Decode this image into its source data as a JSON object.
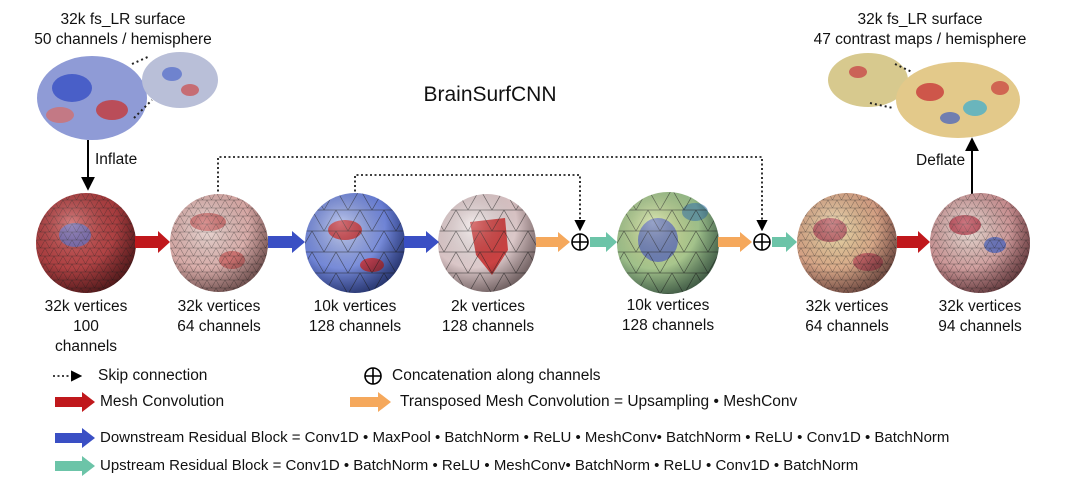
{
  "title": "BrainSurfCNN",
  "input_surface": {
    "line1": "32k fs_LR surface",
    "line2": "50 channels / hemisphere"
  },
  "output_surface": {
    "line1": "32k fs_LR surface",
    "line2": "47 contrast maps / hemisphere"
  },
  "inflate_label": "Inflate",
  "deflate_label": "Deflate",
  "nodes": [
    {
      "line1": "32k vertices",
      "line2": "100",
      "line3": "channels"
    },
    {
      "line1": "32k vertices",
      "line2": "64 channels"
    },
    {
      "line1": "10k vertices",
      "line2": "128 channels"
    },
    {
      "line1": "2k vertices",
      "line2": "128 channels"
    },
    {
      "line1": "10k vertices",
      "line2": "128 channels"
    },
    {
      "line1": "32k vertices",
      "line2": "64 channels"
    },
    {
      "line1": "32k vertices",
      "line2": "94 channels"
    }
  ],
  "legend": {
    "skip": "Skip connection",
    "concat": "Concatenation along channels",
    "mesh_conv": "Mesh Convolution",
    "transposed": "Transposed Mesh Convolution = Upsampling • MeshConv",
    "downstream": "Downstream Residual Block = Conv1D • MaxPool • BatchNorm • ReLU •  MeshConv• BatchNorm • ReLU •  Conv1D • BatchNorm",
    "upstream": "Upstream Residual Block = Conv1D • BatchNorm • ReLU •  MeshConv• BatchNorm • ReLU •  Conv1D • BatchNorm"
  },
  "colors": {
    "mesh_conv": "#c0181c",
    "downstream": "#3a4fc4",
    "transposed": "#f5a85c",
    "upstream": "#6cc4a8"
  }
}
